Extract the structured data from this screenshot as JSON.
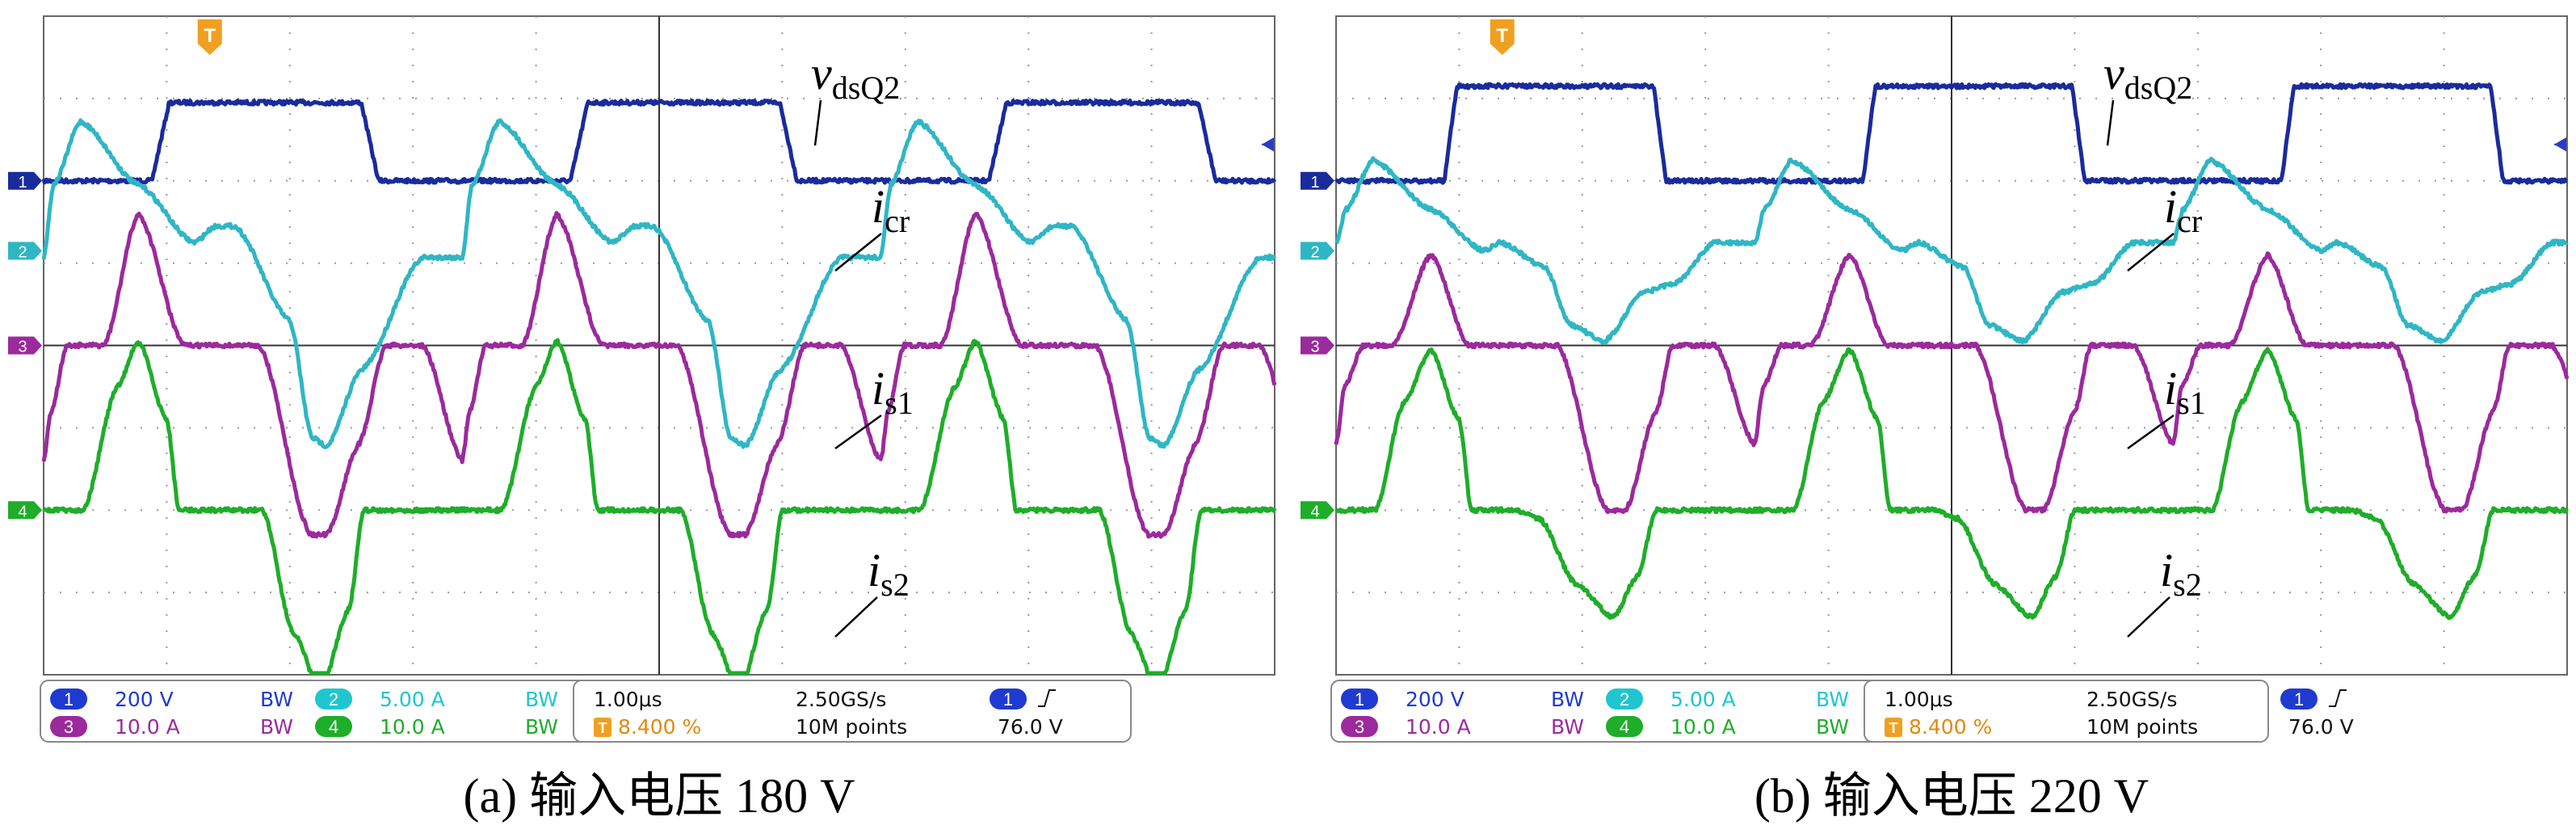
{
  "chart_data": [
    {
      "type": "line",
      "caption": "(a) 输入电压 180 V",
      "x_divisions": 10,
      "y_divisions": 8,
      "trigger_marker": "T",
      "series": [
        {
          "name": "v_dsQ2",
          "channel": "1",
          "color": "#1a2b9c",
          "ref_div": 2.0,
          "scale_label": "200 V",
          "waveform": {
            "shape": "square",
            "period_div": 3.4,
            "phase_div": 0.88,
            "duty": 0.5,
            "rise_div": 0.14,
            "low_div": 0,
            "high_div": 0.95
          }
        },
        {
          "name": "i_cr",
          "channel": "2",
          "color": "#2fb6c4",
          "ref_div": 2.85,
          "scale_label": "5.00 A",
          "waveform": {
            "shape": "points",
            "period_div": 3.4,
            "x": [
              0,
              0.08,
              0.3,
              0.77,
              1.22,
              1.4,
              1.55,
              2.0,
              2.18,
              2.3,
              2.58,
              3.08,
              3.4
            ],
            "y": [
              -0.08,
              0.8,
              1.57,
              0.8,
              0.1,
              0.3,
              0.3,
              -0.85,
              -2.27,
              -2.37,
              -1.45,
              -0.08,
              -0.08
            ]
          }
        },
        {
          "name": "i_s1",
          "channel": "3",
          "color": "#9b2a9c",
          "ref_div": 4.0,
          "scale_label": "10.0 A",
          "waveform": {
            "shape": "points",
            "period_div": 3.4,
            "x": [
              0,
              0.06,
              0.19,
              0.32,
              0.49,
              0.77,
              1.14,
              1.5,
              1.75,
              2.17,
              2.3,
              2.56,
              2.78,
              3.08,
              3.4
            ],
            "y": [
              -1.4,
              -0.8,
              0,
              0,
              0,
              1.6,
              0,
              0,
              0,
              -2.3,
              -2.3,
              -1.2,
              0,
              0,
              -1.4
            ]
          }
        },
        {
          "name": "i_s2",
          "channel": "4",
          "color": "#1fad2a",
          "ref_div": 6.0,
          "scale_label": "10.0 A",
          "waveform": {
            "shape": "points",
            "period_div": 3.4,
            "x": [
              0,
              0.32,
              0.6,
              0.77,
              1.0,
              1.1,
              1.2,
              1.5,
              1.78,
              2.03,
              2.25,
              2.48,
              2.6,
              2.8,
              3.08,
              3.4
            ],
            "y": [
              0,
              0,
              1.5,
              2.05,
              1.1,
              0,
              0,
              0,
              0,
              -1.5,
              -2.2,
              -1.2,
              0,
              0,
              0,
              0
            ]
          }
        }
      ],
      "annotations": [
        {
          "base": "v",
          "sub": "dsQ2",
          "target": "v_dsQ2"
        },
        {
          "base": "i",
          "sub": "cr",
          "target": "i_cr"
        },
        {
          "base": "i",
          "sub": "s1",
          "target": "i_s1"
        },
        {
          "base": "i",
          "sub": "s2",
          "target": "i_s2"
        }
      ],
      "status_bar": {
        "ch1": {
          "num": "1",
          "value": "200 V",
          "bw": "BW"
        },
        "ch2": {
          "num": "2",
          "value": "5.00 A",
          "bw": "BW"
        },
        "ch3": {
          "num": "3",
          "value": "10.0 A",
          "bw": "BW"
        },
        "ch4": {
          "num": "4",
          "value": "10.0 A",
          "bw": "BW"
        },
        "timebase": "1.00μs",
        "sample_rate": "2.50GS/s",
        "trigger_position": "8.400 %",
        "record_length": "10M points",
        "trigger_source": "1",
        "trigger_level": "76.0 V"
      }
    },
    {
      "type": "line",
      "caption": "(b) 输入电压 220 V",
      "x_divisions": 10,
      "y_divisions": 8,
      "trigger_marker": "T",
      "series": [
        {
          "name": "v_dsQ2",
          "channel": "1",
          "color": "#1a2b9c",
          "ref_div": 2.0,
          "scale_label": "200 V",
          "waveform": {
            "shape": "square",
            "period_div": 3.4,
            "phase_div": 0.88,
            "duty": 0.5,
            "rise_div": 0.1,
            "low_div": 0,
            "high_div": 1.15
          }
        },
        {
          "name": "i_cr",
          "channel": "2",
          "color": "#2fb6c4",
          "ref_div": 2.85,
          "scale_label": "5.00 A",
          "waveform": {
            "shape": "points",
            "period_div": 3.4,
            "x": [
              0,
              0.08,
              0.3,
              0.77,
              1.2,
              1.33,
              1.7,
              1.9,
              2.18,
              2.5,
              2.75,
              3.08,
              3.4
            ],
            "y": [
              0.1,
              0.5,
              1.1,
              0.5,
              0,
              0.1,
              -0.2,
              -0.9,
              -1.1,
              -0.5,
              -0.4,
              0.1,
              0.1
            ]
          }
        },
        {
          "name": "i_s1",
          "channel": "3",
          "color": "#9b2a9c",
          "ref_div": 4.0,
          "scale_label": "10.0 A",
          "waveform": {
            "shape": "points",
            "period_div": 3.4,
            "x": [
              0,
              0.07,
              0.22,
              0.34,
              0.46,
              0.77,
              1.08,
              1.6,
              1.8,
              2.2,
              2.35,
              2.6,
              2.73,
              3.08,
              3.4
            ],
            "y": [
              -1.2,
              -0.5,
              0,
              0,
              0,
              1.1,
              0,
              0,
              0,
              -2.0,
              -2.0,
              -0.8,
              0,
              0,
              -1.2
            ]
          }
        },
        {
          "name": "i_s2",
          "channel": "4",
          "color": "#1fad2a",
          "ref_div": 6.0,
          "scale_label": "10.0 A",
          "waveform": {
            "shape": "points",
            "period_div": 3.4,
            "x": [
              0,
              0.32,
              0.55,
              0.77,
              1.0,
              1.1,
              1.22,
              1.45,
              1.65,
              1.95,
              2.25,
              2.45,
              2.6,
              2.8,
              3.08,
              3.4
            ],
            "y": [
              0,
              0,
              1.3,
              1.95,
              1.1,
              0,
              0,
              0,
              -0.1,
              -0.9,
              -1.3,
              -0.8,
              0,
              0,
              0,
              0
            ]
          }
        }
      ],
      "annotations": [
        {
          "base": "v",
          "sub": "dsQ2",
          "target": "v_dsQ2"
        },
        {
          "base": "i",
          "sub": "cr",
          "target": "i_cr"
        },
        {
          "base": "i",
          "sub": "s1",
          "target": "i_s1"
        },
        {
          "base": "i",
          "sub": "s2",
          "target": "i_s2"
        }
      ],
      "status_bar": {
        "ch1": {
          "num": "1",
          "value": "200 V",
          "bw": "BW"
        },
        "ch2": {
          "num": "2",
          "value": "5.00 A",
          "bw": "BW"
        },
        "ch3": {
          "num": "3",
          "value": "10.0 A",
          "bw": "BW"
        },
        "ch4": {
          "num": "4",
          "value": "10.0 A",
          "bw": "BW"
        },
        "timebase": "1.00μs",
        "sample_rate": "2.50GS/s",
        "trigger_position": "8.400 %",
        "record_length": "10M points",
        "trigger_source": "1",
        "trigger_level": "76.0 V"
      }
    }
  ]
}
